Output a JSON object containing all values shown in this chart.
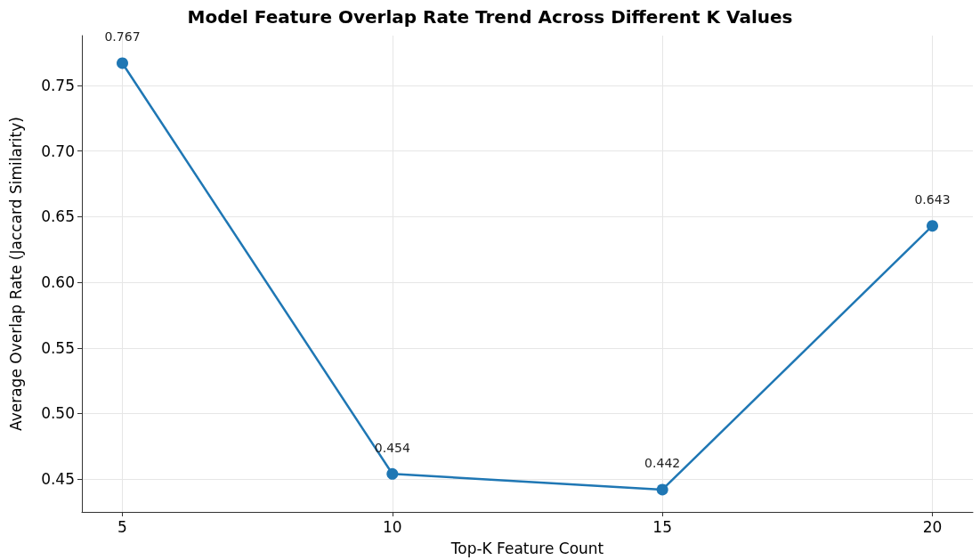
{
  "chart_data": {
    "type": "line",
    "title": "Model Feature Overlap Rate Trend Across Different K Values",
    "xlabel": "Top-K Feature Count",
    "ylabel": "Average Overlap Rate (Jaccard Similarity)",
    "x": [
      5,
      10,
      15,
      20
    ],
    "series": [
      {
        "color": "#1f77b4",
        "values": [
          0.767,
          0.454,
          0.442,
          0.643
        ]
      }
    ],
    "xlim": [
      4.25,
      20.75
    ],
    "xticks": [
      5,
      10,
      15,
      20
    ],
    "ylim": [
      0.425,
      0.788
    ],
    "yticks": [
      0.45,
      {
        "value": 0.5,
        "label": "0.50"
      },
      0.55,
      {
        "value": 0.6,
        "label": "0.60"
      },
      0.65,
      {
        "value": 0.7,
        "label": "0.70"
      },
      0.75
    ],
    "grid": true,
    "marker": "circle",
    "line_style": "solid",
    "data_labels": true
  }
}
